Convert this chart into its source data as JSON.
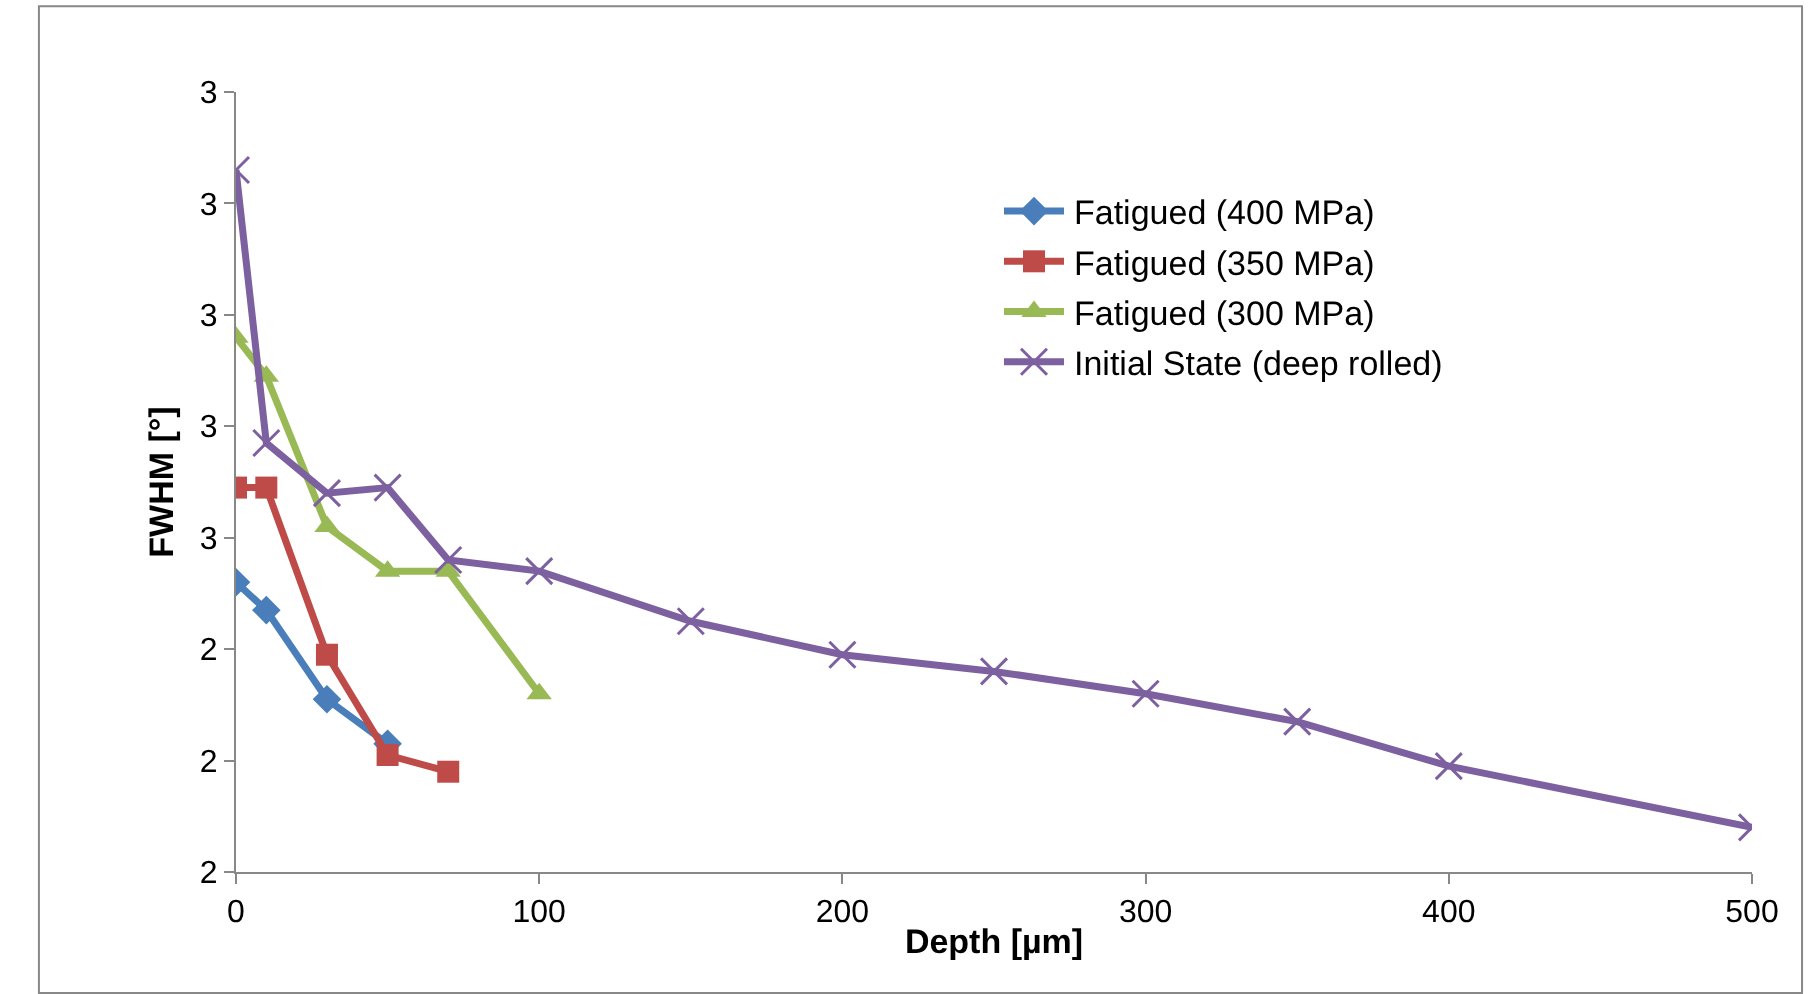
{
  "chart_data": {
    "type": "line",
    "xlabel": "Depth [µm]",
    "ylabel": "FWHM [°]",
    "xlim": [
      0,
      500
    ],
    "xticks": [
      0,
      100,
      200,
      300,
      400,
      500
    ],
    "ylim": [
      2.0,
      3.4
    ],
    "yticks": [
      {
        "value": 2.0,
        "label": "2"
      },
      {
        "value": 2.2,
        "label": "2"
      },
      {
        "value": 2.4,
        "label": "2"
      },
      {
        "value": 2.6,
        "label": "3"
      },
      {
        "value": 2.8,
        "label": "3"
      },
      {
        "value": 3.0,
        "label": "3"
      },
      {
        "value": 3.2,
        "label": "3"
      },
      {
        "value": 3.4,
        "label": "3"
      }
    ],
    "legend": "right",
    "line_style": "solid",
    "series": [
      {
        "name": "Fatigued (400 MPa)",
        "color": "#4a7ebb",
        "marker": "diamond",
        "x": [
          0,
          10,
          30,
          50
        ],
        "values": [
          2.52,
          2.47,
          2.31,
          2.23
        ]
      },
      {
        "name": "Fatigued (350 MPa)",
        "color": "#be4b48",
        "marker": "square",
        "x": [
          0,
          10,
          30,
          50,
          70
        ],
        "values": [
          2.69,
          2.69,
          2.39,
          2.21,
          2.18
        ]
      },
      {
        "name": "Fatigued (300 MPa)",
        "color": "#98b954",
        "marker": "triangle",
        "x": [
          0,
          10,
          30,
          50,
          70,
          100
        ],
        "values": [
          2.96,
          2.89,
          2.62,
          2.54,
          2.54,
          2.32
        ]
      },
      {
        "name": "Initial State (deep rolled)",
        "color": "#7d60a0",
        "marker": "cross",
        "x": [
          0,
          10,
          30,
          50,
          70,
          100,
          150,
          200,
          250,
          300,
          350,
          400,
          500
        ],
        "values": [
          3.26,
          2.77,
          2.68,
          2.69,
          2.56,
          2.54,
          2.45,
          2.39,
          2.36,
          2.32,
          2.27,
          2.19,
          2.08
        ]
      }
    ]
  }
}
